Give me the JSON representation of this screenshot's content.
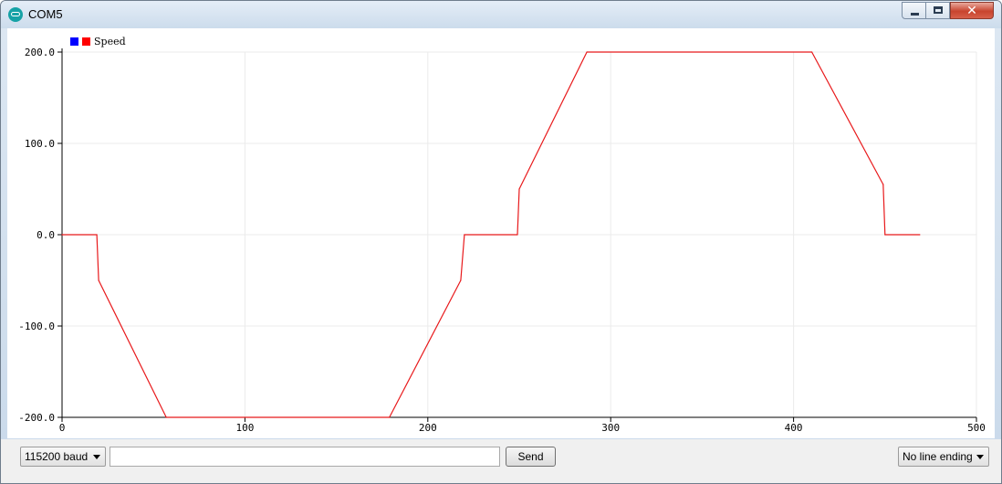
{
  "window": {
    "title": "COM5",
    "minimize_glyph": "–",
    "maximize_glyph": "□",
    "close_glyph": "✕"
  },
  "controls": {
    "baud_rate": "115200 baud",
    "send_value": "",
    "send_label": "Send",
    "line_ending": "No line ending"
  },
  "colors": {
    "series_line": "#e8191b",
    "legend_blue": "#0000ff",
    "legend_red": "#ff0000",
    "grid": "#ebebeb",
    "axis": "#000000"
  },
  "chart_data": {
    "type": "line",
    "title": "",
    "xlabel": "",
    "ylabel": "",
    "xlim": [
      0,
      500
    ],
    "ylim": [
      -200,
      200
    ],
    "grid": true,
    "legend_position": "top-left",
    "x_ticks": [
      0,
      100,
      200,
      300,
      400,
      500
    ],
    "x_tick_labels": [
      "0",
      "100",
      "200",
      "300",
      "400",
      "500"
    ],
    "y_ticks": [
      200,
      100,
      0,
      -100,
      -200
    ],
    "y_tick_labels": [
      "200.0",
      "100.0",
      "0.0",
      "-100.0",
      "-200.0"
    ],
    "series": [
      {
        "name": "Speed",
        "legend_swatches": [
          "blue",
          "red"
        ],
        "x": [
          0,
          19,
          20,
          57,
          179,
          218,
          220,
          249,
          250,
          287,
          410,
          449,
          450,
          469
        ],
        "y": [
          0,
          0,
          -50,
          -200,
          -200,
          -50,
          0,
          0,
          50,
          200,
          200,
          55,
          0,
          0
        ]
      }
    ]
  }
}
